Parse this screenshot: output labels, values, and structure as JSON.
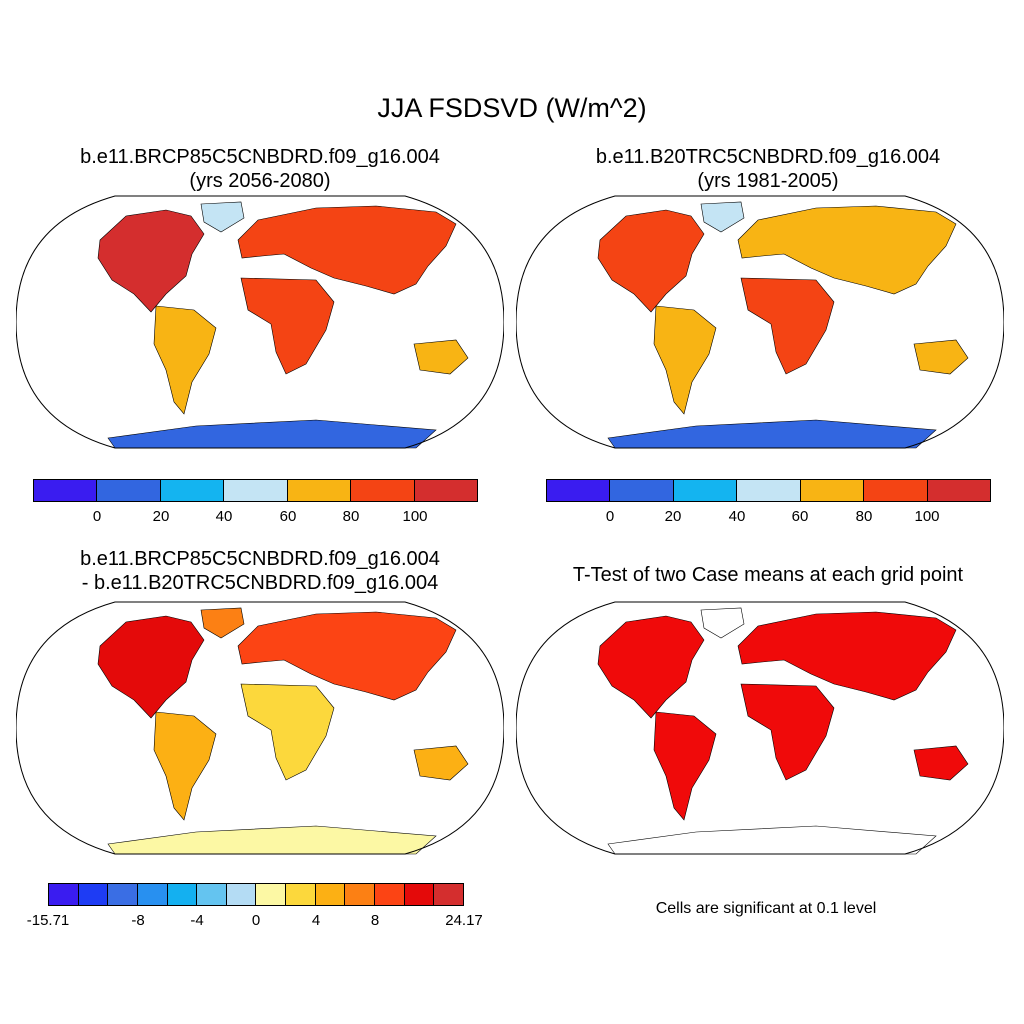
{
  "title": "JJA FSDSVD (W/m^2)",
  "panels": [
    {
      "title_line1": "b.e11.BRCP85C5CNBDRD.f09_g16.004",
      "title_line2": "(yrs 2056-2080)"
    },
    {
      "title_line1": "b.e11.B20TRC5CNBDRD.f09_g16.004",
      "title_line2": "(yrs 1981-2005)"
    },
    {
      "title_line1": "b.e11.BRCP85C5CNBDRD.f09_g16.004",
      "title_line2": "- b.e11.B20TRC5CNBDRD.f09_g16.004"
    },
    {
      "title_line1": "T-Test of two Case means at each grid point"
    }
  ],
  "colorbar_abs": {
    "colors": [
      "#3a1cf0",
      "#3266e0",
      "#14b4f0",
      "#c4e4f4",
      "#f8b414",
      "#f44414",
      "#d42e2e"
    ],
    "labels": [
      "0",
      "20",
      "40",
      "60",
      "80",
      "100"
    ]
  },
  "colorbar_diff": {
    "colors": [
      "#3a1cf0",
      "#1e3cf4",
      "#3a6ee4",
      "#2890f0",
      "#14b0f0",
      "#64c4f0",
      "#b4dcf4",
      "#fcf8a4",
      "#fcd83c",
      "#fcb014",
      "#fc8014",
      "#fc4414",
      "#e40a0a",
      "#d42e2e"
    ],
    "labels": [
      "-15.71",
      "-8",
      "-4",
      "0",
      "4",
      "8",
      "24.17"
    ]
  },
  "significance_note": "Cells are significant at 0.1 level",
  "significance_color": "#f00a0a"
}
